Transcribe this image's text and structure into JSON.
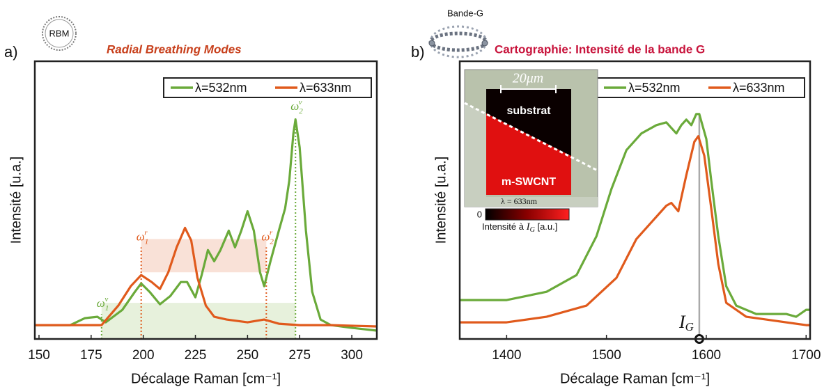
{
  "chart_data": [
    {
      "type": "line",
      "panel_label": "a)",
      "icon_label": "RBM",
      "title": "Radial Breathing Modes",
      "xlabel": "Décalage Raman [cm⁻¹]",
      "ylabel": "Intensité [u.a.]",
      "xlim": [
        148,
        312
      ],
      "xticks": [
        150,
        175,
        200,
        225,
        250,
        275,
        300
      ],
      "ylim": [
        0,
        1
      ],
      "legend": "upper right",
      "bands": [
        {
          "x": [
            199,
            259
          ],
          "y": [
            0.24,
            0.36
          ],
          "color": "#f8dcd0"
        },
        {
          "x": [
            180,
            273
          ],
          "y": [
            0,
            0.13
          ],
          "color": "#e3eed6"
        }
      ],
      "series": [
        {
          "name": "λ=532nm",
          "color": "#6aaa3a",
          "x": [
            148,
            165,
            172,
            178,
            182,
            190,
            196,
            199,
            203,
            208,
            213,
            218,
            221,
            225,
            228,
            231,
            234,
            237,
            241,
            244,
            247,
            250,
            253,
            256,
            258,
            261,
            265,
            268,
            270,
            272,
            273,
            275,
            278,
            281,
            285,
            290,
            300,
            312
          ],
          "values": [
            0.05,
            0.05,
            0.075,
            0.08,
            0.06,
            0.105,
            0.17,
            0.2,
            0.17,
            0.125,
            0.155,
            0.205,
            0.205,
            0.15,
            0.23,
            0.32,
            0.28,
            0.32,
            0.39,
            0.33,
            0.39,
            0.46,
            0.39,
            0.24,
            0.19,
            0.28,
            0.39,
            0.47,
            0.57,
            0.74,
            0.79,
            0.69,
            0.39,
            0.17,
            0.07,
            0.05,
            0.04,
            0.03
          ]
        },
        {
          "name": "λ=633nm",
          "color": "#e05a1c",
          "x": [
            148,
            165,
            180,
            188,
            194,
            199,
            204,
            208,
            212,
            216,
            220,
            223,
            226,
            230,
            234,
            240,
            250,
            258,
            265,
            275,
            290,
            312
          ],
          "values": [
            0.05,
            0.05,
            0.05,
            0.12,
            0.19,
            0.23,
            0.205,
            0.18,
            0.24,
            0.33,
            0.4,
            0.355,
            0.22,
            0.12,
            0.08,
            0.07,
            0.06,
            0.07,
            0.055,
            0.05,
            0.05,
            0.045
          ]
        }
      ],
      "annotations": [
        {
          "text": "ω",
          "sub": "1",
          "sup": "v",
          "x": 180,
          "y": 0.09,
          "color": "#6aaa3a"
        },
        {
          "text": "ω",
          "sub": "1",
          "sup": "r",
          "x": 199,
          "y": 0.33,
          "color": "#e05a1c"
        },
        {
          "text": "ω",
          "sub": "2",
          "sup": "r",
          "x": 259,
          "y": 0.33,
          "color": "#e05a1c"
        },
        {
          "text": "ω",
          "sub": "2",
          "sup": "v",
          "x": 273,
          "y": 0.8,
          "color": "#6aaa3a"
        }
      ]
    },
    {
      "type": "line",
      "panel_label": "b)",
      "icon_label": "Bande-G",
      "title": "Cartographie: Intensité de la bande G",
      "xlabel": "Décalage Raman [cm⁻¹]",
      "ylabel": "Intensité [u.a.]",
      "xlim": [
        1353,
        1704
      ],
      "xticks": [
        1400,
        1500,
        1600,
        1700
      ],
      "ylim": [
        0,
        1
      ],
      "legend": "upper right",
      "series": [
        {
          "name": "λ=532nm",
          "color": "#6aaa3a",
          "x": [
            1353,
            1400,
            1440,
            1470,
            1490,
            1505,
            1520,
            1535,
            1550,
            1560,
            1565,
            1570,
            1575,
            1580,
            1585,
            1590,
            1593,
            1600,
            1605,
            1612,
            1620,
            1630,
            1650,
            1680,
            1690,
            1700,
            1704
          ],
          "values": [
            0.14,
            0.14,
            0.17,
            0.23,
            0.37,
            0.54,
            0.68,
            0.74,
            0.77,
            0.78,
            0.76,
            0.74,
            0.77,
            0.79,
            0.77,
            0.81,
            0.81,
            0.72,
            0.57,
            0.37,
            0.19,
            0.12,
            0.09,
            0.09,
            0.08,
            0.105,
            0.105
          ]
        },
        {
          "name": "λ=633nm",
          "color": "#e05a1c",
          "x": [
            1353,
            1400,
            1440,
            1480,
            1510,
            1530,
            1545,
            1560,
            1565,
            1572,
            1580,
            1588,
            1592,
            1598,
            1605,
            1612,
            1620,
            1640,
            1660,
            1700,
            1704
          ],
          "values": [
            0.06,
            0.06,
            0.08,
            0.12,
            0.22,
            0.36,
            0.42,
            0.48,
            0.49,
            0.46,
            0.59,
            0.71,
            0.73,
            0.66,
            0.47,
            0.27,
            0.13,
            0.08,
            0.07,
            0.05,
            0.05
          ]
        }
      ],
      "annotations": [
        {
          "text": "I",
          "sub": "G",
          "x": 1593,
          "y": 0.81,
          "color": "#aaaaaa",
          "style": "marker"
        }
      ],
      "inset": {
        "scale_bar": "20μm",
        "top_label": "substrat",
        "bottom_label": "m-SWCNT",
        "wavelength": "λ = 633nm",
        "colorbar_min": 0,
        "colorbar_label": "Intensité à ",
        "colorbar_var": "I",
        "colorbar_sub": "G",
        "colorbar_unit": " [a.u.]"
      }
    }
  ]
}
